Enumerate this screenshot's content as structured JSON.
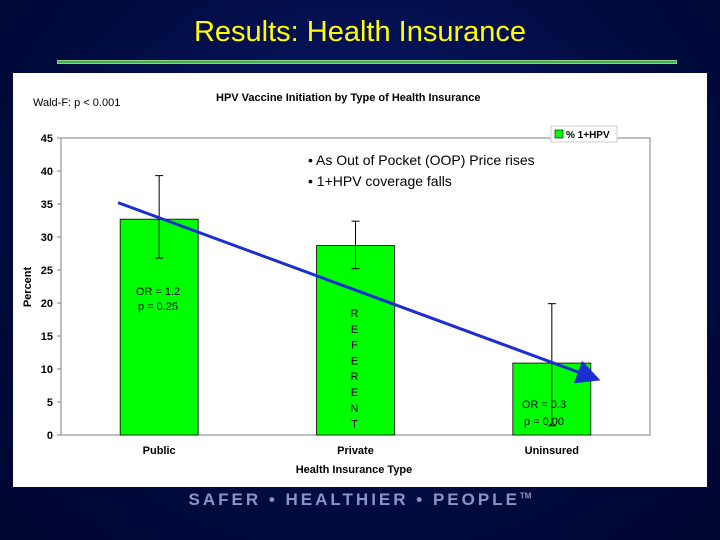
{
  "slide": {
    "title": "Results: Health Insurance",
    "footer": "SAFER • HEALTHIER • PEOPLE",
    "footer_mark": "TM"
  },
  "chart_data": {
    "type": "bar",
    "title": "HPV Vaccine Initiation by Type of Health Insurance",
    "test_label": "Wald-F: p < 0.001",
    "xlabel": "Health Insurance Type",
    "ylabel": "Percent",
    "categories": [
      "Public",
      "Private",
      "Uninsured"
    ],
    "series": [
      {
        "name": "% 1+HPV",
        "values": [
          32.7,
          28.7,
          10.9
        ],
        "ci_low": [
          26.8,
          25.2,
          1.4
        ],
        "ci_high": [
          39.3,
          32.4,
          19.9
        ],
        "color": "#00ff00"
      }
    ],
    "ylim": [
      0,
      45
    ],
    "yticks": [
      0,
      5,
      10,
      15,
      20,
      25,
      30,
      35,
      40,
      45
    ],
    "legend_position": "top-right",
    "grid": false,
    "trend_line": {
      "from": [
        0,
        35.2
      ],
      "to": [
        2,
        8.6
      ],
      "color": "#1a2ed1"
    },
    "annotations": {
      "bullets": [
        "• As Out of Pocket  (OOP) Price rises",
        "• 1+HPV coverage falls"
      ],
      "public_or": [
        "OR = 1.2",
        "p = 0.25"
      ],
      "reference": [
        "R",
        "E",
        "F",
        "E",
        "R",
        "E",
        "N",
        "T"
      ],
      "uninsured_or": [
        "OR = 0.3",
        "p = 0.00"
      ]
    }
  }
}
